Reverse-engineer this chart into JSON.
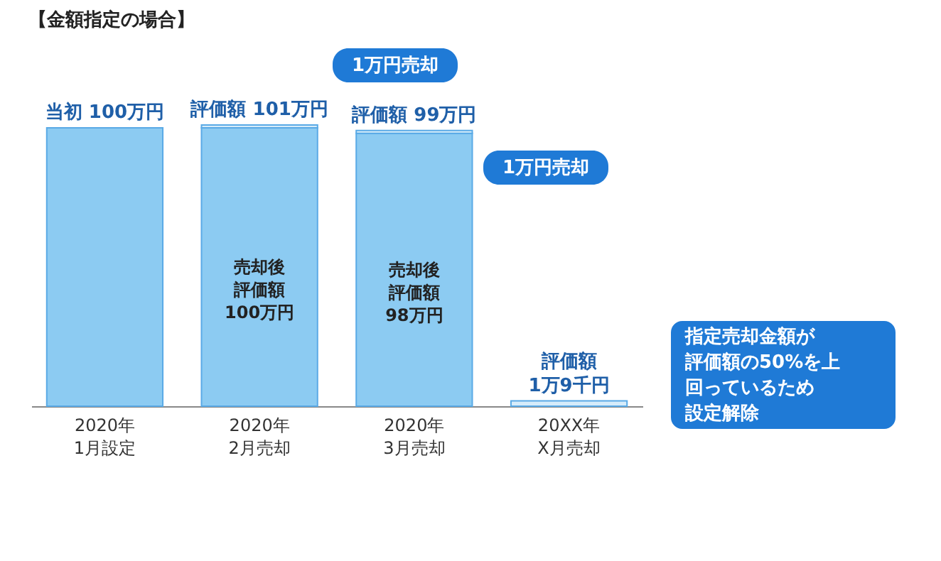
{
  "chart_data": {
    "type": "bar",
    "title": "【金額指定の場合】",
    "stacked": true,
    "legend": false,
    "grid": false,
    "tick_labels": "x",
    "ylim": [
      0,
      101
    ],
    "categories": [
      "2020年\n1月設定",
      "2020年\n2月売却",
      "2020年\n3月売却",
      "20XX年\nX月売却"
    ],
    "series": [
      {
        "color": "#8ccbf2",
        "values": [
          100,
          100,
          98,
          null
        ],
        "value_labels": [
          null,
          "売却後評価額100万円",
          "売却後評価額98万円",
          null
        ]
      },
      {
        "color": "#d6ecfa",
        "values": [
          null,
          1,
          1,
          1.9
        ]
      }
    ],
    "totals": [
      "当初 100万円",
      "評価額 101万円",
      "評価額 99万円",
      "評価額\n1万9千円"
    ],
    "annotations": [
      "1万円売却",
      "1万円売却",
      "指定売却金額が評価額の50%を上回っているため設定解除"
    ]
  }
}
